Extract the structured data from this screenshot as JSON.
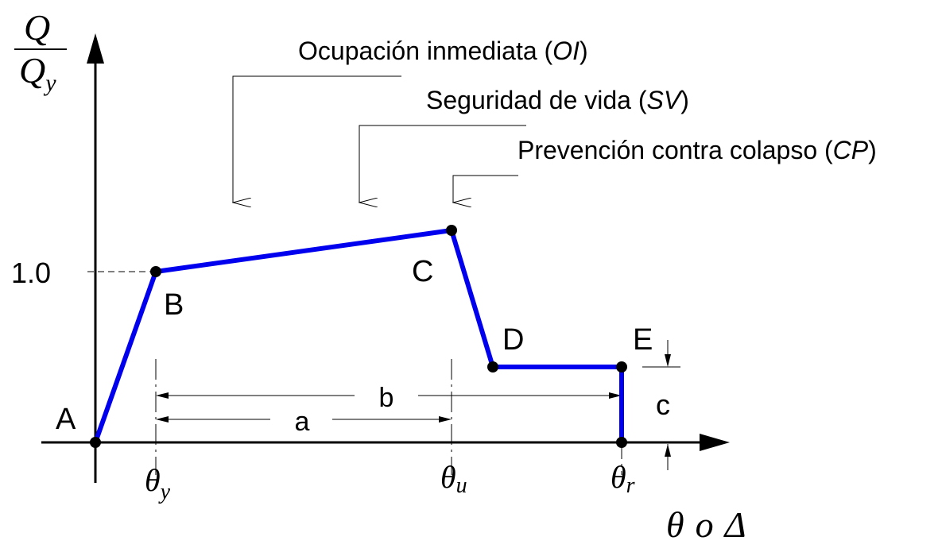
{
  "axes": {
    "y_label_numerator": "Q",
    "y_label_denominator_base": "Q",
    "y_label_denominator_sub": "y",
    "x_label_theta": "θ",
    "x_label_conj": "o",
    "x_label_delta": "Δ",
    "y_tick": "1.0",
    "x_ticks": [
      {
        "base": "θ",
        "sub": "y"
      },
      {
        "base": "θ",
        "sub": "u"
      },
      {
        "base": "θ",
        "sub": "r"
      }
    ]
  },
  "points": [
    "A",
    "B",
    "C",
    "D",
    "E"
  ],
  "performance_levels": [
    {
      "text": "Ocupación inmediata (",
      "abbr": "OI",
      "close": ")"
    },
    {
      "text": "Seguridad de vida (",
      "abbr": "SV",
      "close": ")"
    },
    {
      "text": "Prevención contra colapso (",
      "abbr": "CP",
      "close": ")"
    }
  ],
  "dimensions": {
    "a": "a",
    "b": "b",
    "c": "c"
  },
  "colors": {
    "curve": "#0000ee",
    "ink": "#000000"
  }
}
